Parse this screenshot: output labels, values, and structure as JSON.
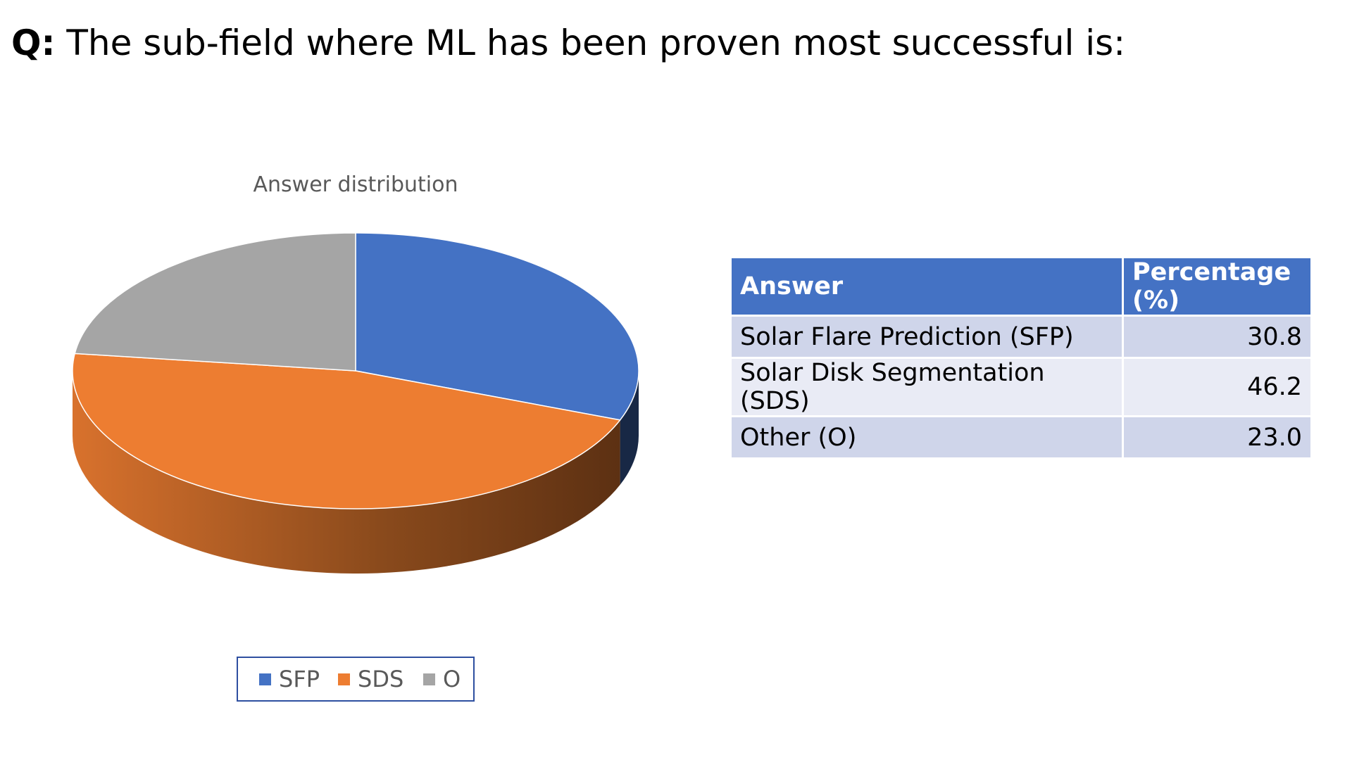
{
  "question": {
    "prefix": "Q:",
    "text": " The sub-field where ML has been proven most successful is:"
  },
  "chart_data": {
    "type": "pie",
    "title": "Answer distribution",
    "categories": [
      "SFP",
      "SDS",
      "O"
    ],
    "values": [
      30.8,
      46.2,
      23.0
    ],
    "colors": [
      "#4472c4",
      "#ed7d31",
      "#a5a5a5"
    ],
    "legend_position": "bottom"
  },
  "table": {
    "headers": [
      "Answer",
      "Percentage (%)"
    ],
    "rows": [
      [
        "Solar Flare Prediction (SFP)",
        "30.8"
      ],
      [
        "Solar Disk Segmentation (SDS)",
        "46.2"
      ],
      [
        "Other (O)",
        "23.0"
      ]
    ]
  }
}
